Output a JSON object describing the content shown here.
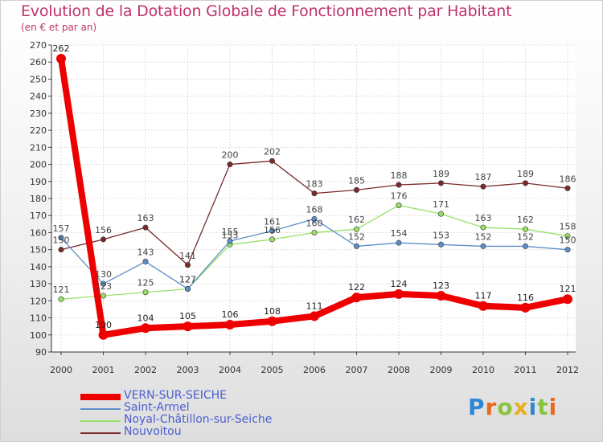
{
  "chart_data": {
    "type": "line",
    "title": "Evolution de la Dotation Globale de Fonctionnement par Habitant",
    "subtitle": "(en € et par an)",
    "x": [
      "2000",
      "2001",
      "2002",
      "2003",
      "2004",
      "2005",
      "2006",
      "2007",
      "2008",
      "2009",
      "2010",
      "2011",
      "2012"
    ],
    "yticks": [
      90,
      100,
      110,
      120,
      130,
      140,
      150,
      160,
      170,
      180,
      190,
      200,
      210,
      220,
      230,
      240,
      250,
      260,
      270
    ],
    "ylim": [
      90,
      270
    ],
    "grid": true,
    "legend_position": "bottom-left",
    "series": [
      {
        "name": "VERN-SUR-SEICHE",
        "color": "#ee0000",
        "values": [
          262,
          100,
          104,
          105,
          106,
          108,
          111,
          122,
          124,
          123,
          117,
          116,
          121
        ]
      },
      {
        "name": "Saint-Armel",
        "color": "#5b8fc7",
        "values": [
          157,
          130,
          143,
          127,
          155,
          161,
          168,
          152,
          154,
          153,
          152,
          152,
          150
        ]
      },
      {
        "name": "Noyal-Châtillon-sur-Seiche",
        "color": "#99e066",
        "values": [
          121,
          123,
          125,
          127,
          153,
          156,
          160,
          162,
          176,
          171,
          163,
          162,
          158
        ]
      },
      {
        "name": "Nouvoitou",
        "color": "#7a2a2a",
        "values": [
          150,
          156,
          163,
          141,
          200,
          202,
          183,
          185,
          188,
          189,
          187,
          189,
          186
        ]
      }
    ]
  },
  "brand": {
    "letters": [
      "P",
      "r",
      "o",
      "x",
      "i",
      "t",
      "i"
    ],
    "colors": [
      "#2f86d8",
      "#e86a1a",
      "#8ac43f",
      "#e8b020",
      "#2f86d8",
      "#8ac43f",
      "#e86a1a"
    ]
  }
}
